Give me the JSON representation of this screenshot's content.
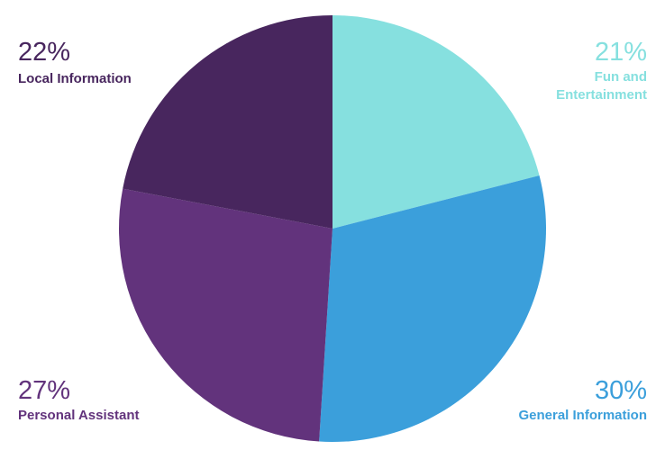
{
  "chart_data": {
    "type": "pie",
    "title": "",
    "slices": [
      {
        "label": "Fun and Entertainment",
        "label_lines": [
          "Fun and",
          "Entertainment"
        ],
        "value": 21,
        "display": "21%",
        "color": "#86e0df",
        "text_color": "#86e0df"
      },
      {
        "label": "General Information",
        "label_lines": [
          "General Information"
        ],
        "value": 30,
        "display": "30%",
        "color": "#3b9fdb",
        "text_color": "#3b9fdb"
      },
      {
        "label": "Personal Assistant",
        "label_lines": [
          "Personal Assistant"
        ],
        "value": 27,
        "display": "27%",
        "color": "#62337c",
        "text_color": "#62337c"
      },
      {
        "label": "Local Information",
        "label_lines": [
          "Local Information"
        ],
        "value": 22,
        "display": "22%",
        "color": "#48265e",
        "text_color": "#48265e"
      }
    ],
    "start_angle_deg": 0,
    "direction": "clockwise",
    "legend": "none",
    "label_placement": "corners"
  }
}
